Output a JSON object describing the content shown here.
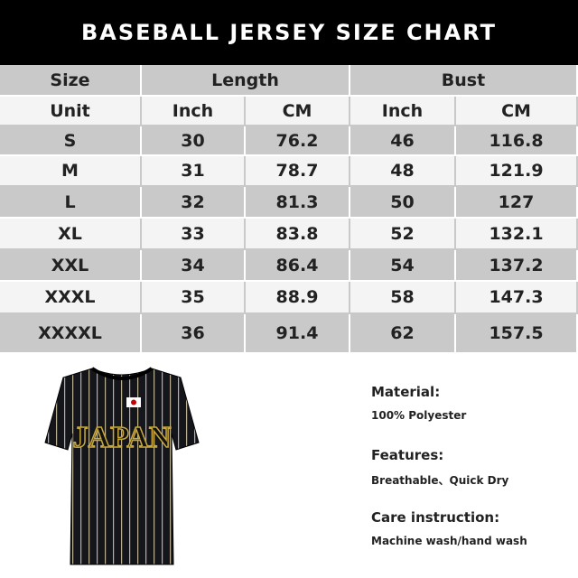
{
  "title": "BASEBALL JERSEY SIZE CHART",
  "table": {
    "groups": [
      "Size",
      "Length",
      "Bust"
    ],
    "units": [
      "Unit",
      "Inch",
      "CM",
      "Inch",
      "CM"
    ],
    "rows": [
      [
        "S",
        30,
        76.2,
        46,
        116.8
      ],
      [
        "M",
        31,
        78.7,
        48,
        121.9
      ],
      [
        "L",
        32,
        81.3,
        50,
        127
      ],
      [
        "XL",
        33,
        83.8,
        52,
        132.1
      ],
      [
        "XXL",
        34,
        86.4,
        54,
        137.2
      ],
      [
        "XXXL",
        35,
        88.9,
        58,
        147.3
      ],
      [
        "XXXXL",
        36,
        91.4,
        62,
        157.5
      ]
    ]
  },
  "jersey_text": "JAPAN",
  "info": [
    {
      "heading": "Material:",
      "text": "100% Polyester"
    },
    {
      "heading": "Features:",
      "text": "Breathable、Quick Dry"
    },
    {
      "heading": "Care instruction:",
      "text": "Machine wash/hand wash"
    }
  ]
}
